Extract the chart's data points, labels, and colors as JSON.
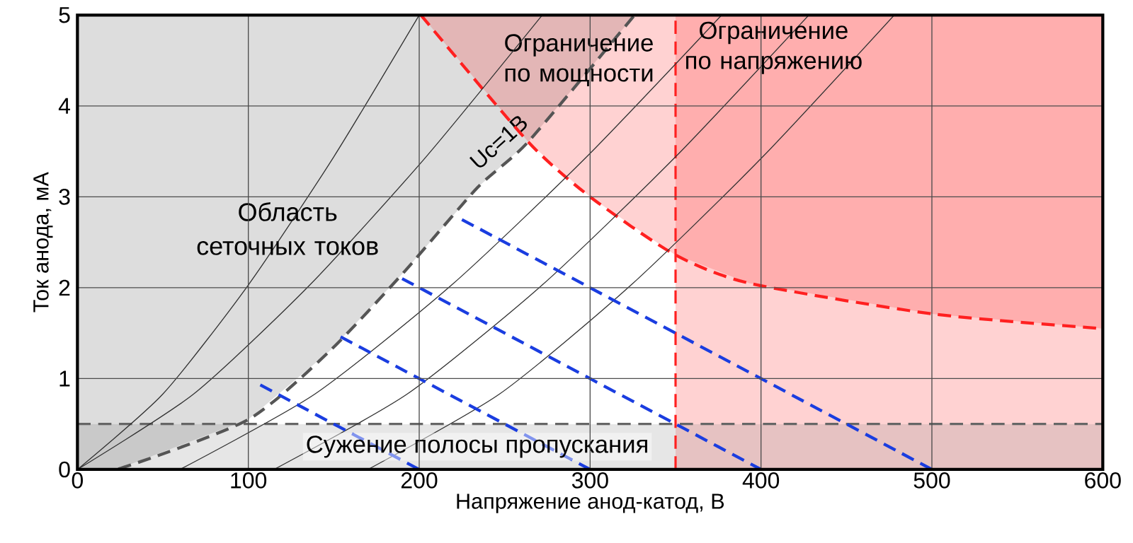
{
  "chart_data": {
    "type": "line",
    "xlabel": "Напряжение анод-катод, В",
    "ylabel": "Ток анода, мА",
    "xlim": [
      0,
      600
    ],
    "ylim": [
      0,
      5
    ],
    "xticks": [
      0,
      100,
      200,
      300,
      400,
      500,
      600
    ],
    "yticks": [
      0,
      1,
      2,
      3,
      4,
      5
    ],
    "grid": true,
    "marker": "none",
    "line_style": "solid",
    "annotations": [
      "Область сеточных токов"
    ],
    "bands": [
      {
        "axis": "x",
        "from": 350,
        "to": 600,
        "label": "Ограничение по напряжению",
        "color": "#ff2020"
      },
      {
        "axis": "y",
        "from": 0,
        "to": 0.5,
        "label": "Сужение полосы пропускания",
        "color": "#808080"
      }
    ],
    "ref_lines": [
      {
        "axis": "x",
        "value": 350,
        "color": "#ff2020",
        "line_style": "dashed"
      },
      {
        "axis": "y",
        "value": 0.5,
        "color": "#666666",
        "line_style": "dashed"
      }
    ],
    "series": [
      {
        "name": "Uc=1B",
        "color": "#555555",
        "line_style": "dashed",
        "x": [
          0,
          23,
          100,
          148,
          191,
          234,
          264,
          326
        ],
        "values": [
          0,
          0,
          0.55,
          1.31,
          2.17,
          3.1,
          3.61,
          5
        ],
        "lower": [
          0,
          0,
          0.55,
          1.31,
          2.17,
          3.1,
          3.61,
          5
        ],
        "upper": [
          5,
          5,
          5,
          5,
          5,
          5,
          5,
          5
        ]
      },
      {
        "name": "Ограничение по мощности",
        "color": "#ff2020",
        "line_style": "dashed",
        "x": [
          201,
          264,
          300,
          349,
          393,
          501,
          600
        ],
        "values": [
          5,
          3.6,
          3.0,
          2.37,
          2.05,
          1.71,
          1.55
        ],
        "lower": [
          5,
          3.6,
          3.0,
          2.37,
          2.05,
          1.71,
          1.55
        ],
        "upper": [
          5,
          5,
          5,
          5,
          5,
          5,
          5
        ]
      },
      {
        "color": "#333333",
        "x": [
          0,
          50,
          100,
          150,
          200
        ],
        "values": [
          0,
          0.83,
          2.03,
          3.44,
          5
        ]
      },
      {
        "color": "#333333",
        "x": [
          0,
          68,
          136,
          204,
          272
        ],
        "values": [
          0,
          0.83,
          2.03,
          3.44,
          5
        ]
      },
      {
        "color": "#333333",
        "x": [
          60,
          139,
          219,
          298,
          377
        ],
        "values": [
          0,
          0.83,
          2.03,
          3.44,
          5
        ]
      },
      {
        "color": "#333333",
        "x": [
          115,
          193,
          272,
          350,
          428
        ],
        "values": [
          0,
          0.83,
          2.03,
          3.44,
          5
        ]
      },
      {
        "color": "#333333",
        "x": [
          170,
          247,
          324,
          401,
          478
        ],
        "values": [
          0,
          0.83,
          2.03,
          3.44,
          5
        ]
      },
      {
        "color": "#1a3de0",
        "line_style": "dashed",
        "x": [
          225,
          500
        ],
        "values": [
          2.75,
          0
        ]
      },
      {
        "color": "#1a3de0",
        "line_style": "dashed",
        "x": [
          190,
          400
        ],
        "values": [
          2.1,
          0
        ]
      },
      {
        "color": "#1a3de0",
        "line_style": "dashed",
        "x": [
          154,
          300
        ],
        "values": [
          1.46,
          0
        ]
      },
      {
        "color": "#1a3de0",
        "line_style": "dashed",
        "x": [
          107,
          200
        ],
        "values": [
          0.93,
          0
        ]
      }
    ]
  }
}
